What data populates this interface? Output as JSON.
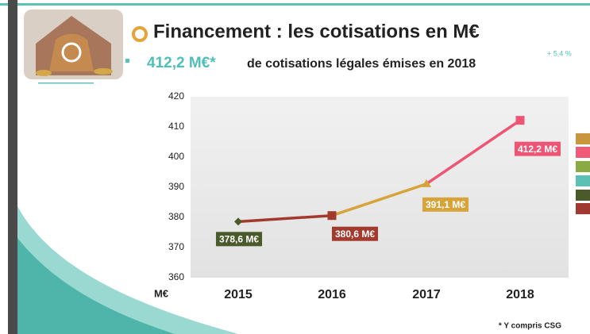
{
  "chart_data": {
    "type": "line",
    "title": "Financement : les cotisations en M€",
    "subtitle_highlight": "412,2 M€*",
    "subtitle": "de cotisations légales émises en 2018",
    "annotation": "+ 5,4 %",
    "footnote": "* Y compris CSG",
    "y_label": "M€",
    "categories": [
      "2015",
      "2016",
      "2017",
      "2018"
    ],
    "series": [
      {
        "values": [
          378.6,
          380.6,
          391.1,
          412.2
        ],
        "value_labels": [
          "378,6 M€",
          "380,6 M€",
          "391,1 M€",
          "412,2 M€"
        ],
        "markers": [
          "diamond",
          "square",
          "triangle",
          "square"
        ],
        "marker_colors": [
          "#4b5a2b",
          "#a33a2e",
          "#d6a43a",
          "#ee5575"
        ],
        "label_colors": [
          "#4b5a2b",
          "#a33a2e",
          "#d6a43a",
          "#ee5575"
        ],
        "segment_colors": [
          "#a33a2e",
          "#d6a43a",
          "#ee5575"
        ]
      }
    ],
    "ylim": [
      360,
      420
    ],
    "yticks": [
      360,
      370,
      380,
      390,
      400,
      410,
      420
    ],
    "grid": false
  }
}
